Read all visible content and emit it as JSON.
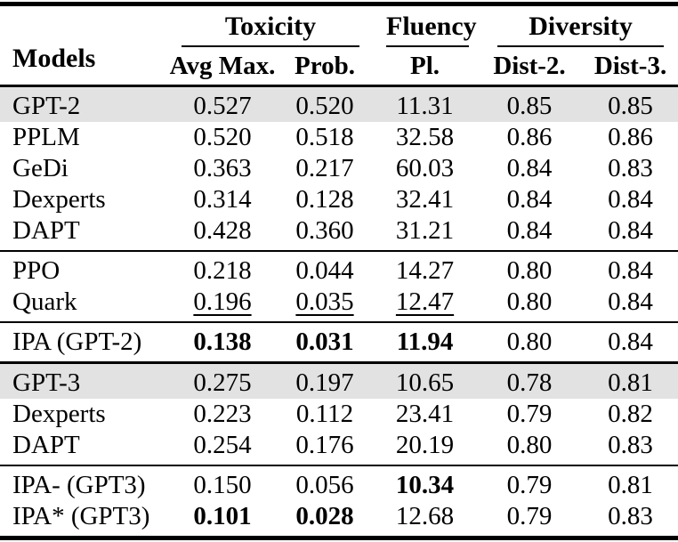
{
  "page": {
    "background": "#ffffff"
  },
  "table": {
    "colors": {
      "shaded_row": "#e2e2e2",
      "rule": "#000000",
      "text": "#000000",
      "background": "#ffffff"
    },
    "header": {
      "models_label": "Models",
      "groups": [
        {
          "label": "Toxicity",
          "span": 2
        },
        {
          "label": "Fluency",
          "span": 1
        },
        {
          "label": "Diversity",
          "span": 2
        }
      ],
      "subheaders": [
        "Avg Max.",
        "Prob.",
        "Pl.",
        "Dist-2.",
        "Dist-3."
      ]
    },
    "sections": [
      {
        "rule_before": "none",
        "rows": [
          {
            "model": "GPT-2",
            "shaded": true,
            "cells": [
              {
                "text": "0.527"
              },
              {
                "text": "0.520"
              },
              {
                "text": "11.31"
              },
              {
                "text": "0.85"
              },
              {
                "text": "0.85"
              }
            ]
          },
          {
            "model": "PPLM",
            "shaded": false,
            "cells": [
              {
                "text": "0.520"
              },
              {
                "text": "0.518"
              },
              {
                "text": "32.58"
              },
              {
                "text": "0.86"
              },
              {
                "text": "0.86"
              }
            ]
          },
          {
            "model": "GeDi",
            "shaded": false,
            "cells": [
              {
                "text": "0.363"
              },
              {
                "text": "0.217"
              },
              {
                "text": "60.03"
              },
              {
                "text": "0.84"
              },
              {
                "text": "0.83"
              }
            ]
          },
          {
            "model": "Dexperts",
            "shaded": false,
            "cells": [
              {
                "text": "0.314"
              },
              {
                "text": "0.128"
              },
              {
                "text": "32.41"
              },
              {
                "text": "0.84"
              },
              {
                "text": "0.84"
              }
            ]
          },
          {
            "model": "DAPT",
            "shaded": false,
            "cells": [
              {
                "text": "0.428"
              },
              {
                "text": "0.360"
              },
              {
                "text": "31.21"
              },
              {
                "text": "0.84"
              },
              {
                "text": "0.84"
              }
            ]
          }
        ]
      },
      {
        "rule_before": "thin",
        "rows": [
          {
            "model": "PPO",
            "shaded": false,
            "cells": [
              {
                "text": "0.218"
              },
              {
                "text": "0.044"
              },
              {
                "text": "14.27"
              },
              {
                "text": "0.80"
              },
              {
                "text": "0.84"
              }
            ]
          },
          {
            "model": "Quark",
            "shaded": false,
            "cells": [
              {
                "text": "0.196",
                "underline": true
              },
              {
                "text": "0.035",
                "underline": true
              },
              {
                "text": "12.47",
                "underline": true
              },
              {
                "text": "0.80"
              },
              {
                "text": "0.84"
              }
            ]
          }
        ]
      },
      {
        "rule_before": "thin",
        "rows": [
          {
            "model": "IPA (GPT-2)",
            "shaded": false,
            "cells": [
              {
                "text": "0.138",
                "bold": true
              },
              {
                "text": "0.031",
                "bold": true
              },
              {
                "text": "11.94",
                "bold": true
              },
              {
                "text": "0.80"
              },
              {
                "text": "0.84"
              }
            ]
          }
        ]
      },
      {
        "rule_before": "thick",
        "rows": [
          {
            "model": "GPT-3",
            "shaded": true,
            "cells": [
              {
                "text": "0.275"
              },
              {
                "text": "0.197"
              },
              {
                "text": "10.65"
              },
              {
                "text": "0.78"
              },
              {
                "text": "0.81"
              }
            ]
          },
          {
            "model": "Dexperts",
            "shaded": false,
            "cells": [
              {
                "text": "0.223"
              },
              {
                "text": "0.112"
              },
              {
                "text": "23.41"
              },
              {
                "text": "0.79"
              },
              {
                "text": "0.82"
              }
            ]
          },
          {
            "model": "DAPT",
            "shaded": false,
            "cells": [
              {
                "text": "0.254"
              },
              {
                "text": "0.176"
              },
              {
                "text": "20.19"
              },
              {
                "text": "0.80"
              },
              {
                "text": "0.83"
              }
            ]
          }
        ]
      },
      {
        "rule_before": "thin",
        "rows": [
          {
            "model": "IPA- (GPT3)",
            "shaded": false,
            "cells": [
              {
                "text": "0.150"
              },
              {
                "text": "0.056"
              },
              {
                "text": "10.34",
                "bold": true
              },
              {
                "text": "0.79"
              },
              {
                "text": "0.81"
              }
            ]
          },
          {
            "model": "IPA* (GPT3)",
            "shaded": false,
            "cells": [
              {
                "text": "0.101",
                "bold": true
              },
              {
                "text": "0.028",
                "bold": true
              },
              {
                "text": "12.68"
              },
              {
                "text": "0.79"
              },
              {
                "text": "0.83"
              }
            ]
          }
        ]
      }
    ]
  }
}
